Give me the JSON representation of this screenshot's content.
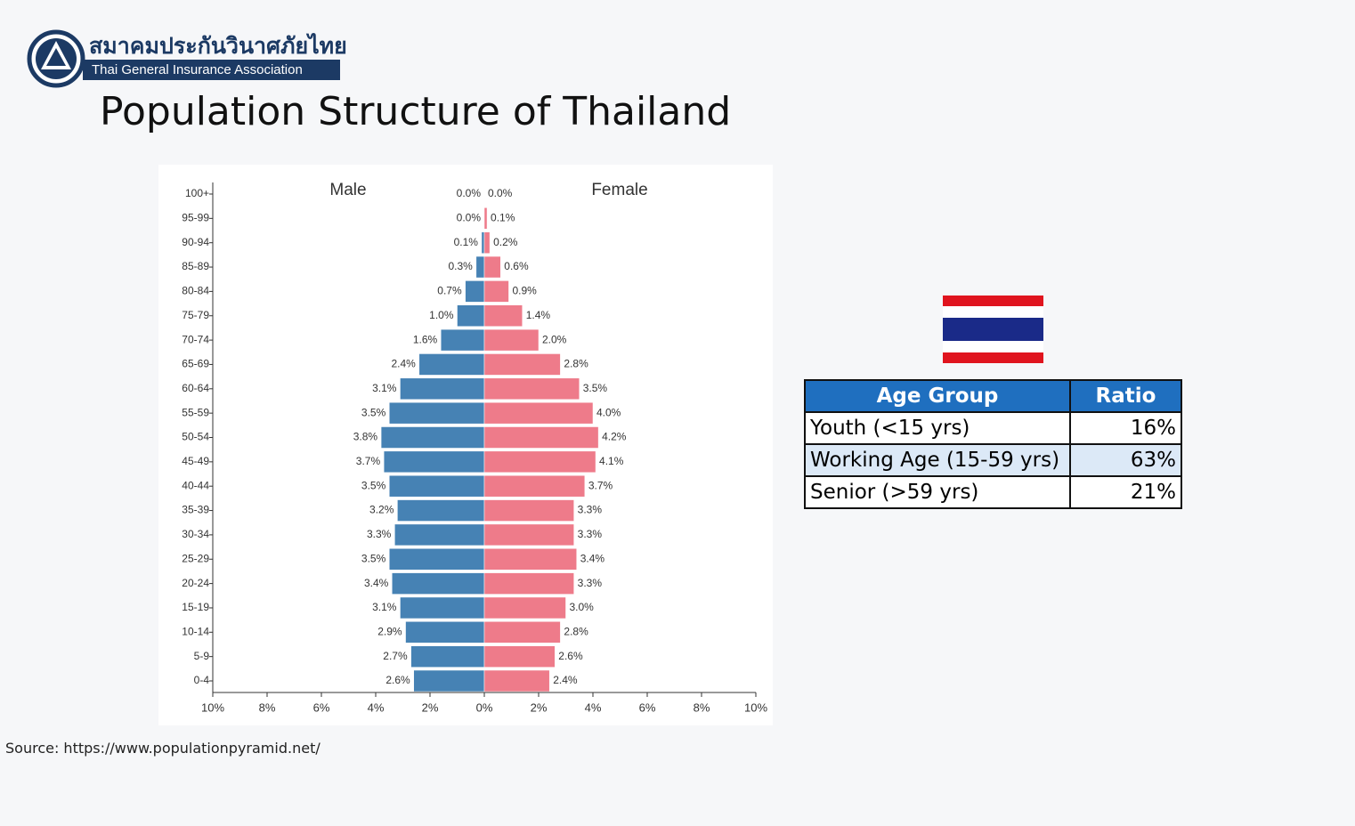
{
  "logo": {
    "thai": "สมาคมประกันวินาศภัยไทย",
    "english": "Thai General Insurance Association"
  },
  "title": "Population Structure of Thailand",
  "chart_data": {
    "type": "pyramid",
    "categories": [
      "0-4",
      "5-9",
      "10-14",
      "15-19",
      "20-24",
      "25-29",
      "30-34",
      "35-39",
      "40-44",
      "45-49",
      "50-54",
      "55-59",
      "60-64",
      "65-69",
      "70-74",
      "75-79",
      "80-84",
      "85-89",
      "90-94",
      "95-99",
      "100+"
    ],
    "series": [
      {
        "name": "Male",
        "color": "#4682b4",
        "values": [
          2.6,
          2.7,
          2.9,
          3.1,
          3.4,
          3.5,
          3.3,
          3.2,
          3.5,
          3.7,
          3.8,
          3.5,
          3.1,
          2.4,
          1.6,
          1.0,
          0.7,
          0.3,
          0.1,
          0.0,
          0.0
        ],
        "value_labels": [
          "2.6%",
          "2.7%",
          "2.9%",
          "3.1%",
          "3.4%",
          "3.5%",
          "3.3%",
          "3.2%",
          "3.5%",
          "3.7%",
          "3.8%",
          "3.5%",
          "3.1%",
          "2.4%",
          "1.6%",
          "1.0%",
          "0.7%",
          "0.3%",
          "0.1%",
          "0.0%",
          "0.0%"
        ]
      },
      {
        "name": "Female",
        "color": "#ee7b8a",
        "values": [
          2.4,
          2.6,
          2.8,
          3.0,
          3.3,
          3.4,
          3.3,
          3.3,
          3.7,
          4.1,
          4.2,
          4.0,
          3.5,
          2.8,
          2.0,
          1.4,
          0.9,
          0.6,
          0.2,
          0.1,
          0.0
        ],
        "value_labels": [
          "2.4%",
          "2.6%",
          "2.8%",
          "3.0%",
          "3.3%",
          "3.4%",
          "3.3%",
          "3.3%",
          "3.7%",
          "4.1%",
          "4.2%",
          "4.0%",
          "3.5%",
          "2.8%",
          "2.0%",
          "1.4%",
          "0.9%",
          "0.6%",
          "0.2%",
          "0.1%",
          "0.0%"
        ]
      }
    ],
    "xlim": [
      -10,
      10
    ],
    "xticks": [
      {
        "value": -10,
        "label": "10%"
      },
      {
        "value": -8,
        "label": "8%"
      },
      {
        "value": -6,
        "label": "6%"
      },
      {
        "value": -4,
        "label": "4%"
      },
      {
        "value": -2,
        "label": "2%"
      },
      {
        "value": 0,
        "label": "0%"
      },
      {
        "value": 2,
        "label": "2%"
      },
      {
        "value": 4,
        "label": "4%"
      },
      {
        "value": 6,
        "label": "6%"
      },
      {
        "value": 8,
        "label": "8%"
      },
      {
        "value": 10,
        "label": "10%"
      }
    ]
  },
  "table": {
    "header": [
      "Age Group",
      "Ratio"
    ],
    "rows": [
      [
        "Youth (<15 yrs)",
        "16%"
      ],
      [
        "Working Age (15-59 yrs)",
        "63%"
      ],
      [
        "Senior (>59 yrs)",
        "21%"
      ]
    ]
  },
  "source": "Source: https://www.populationpyramid.net/"
}
